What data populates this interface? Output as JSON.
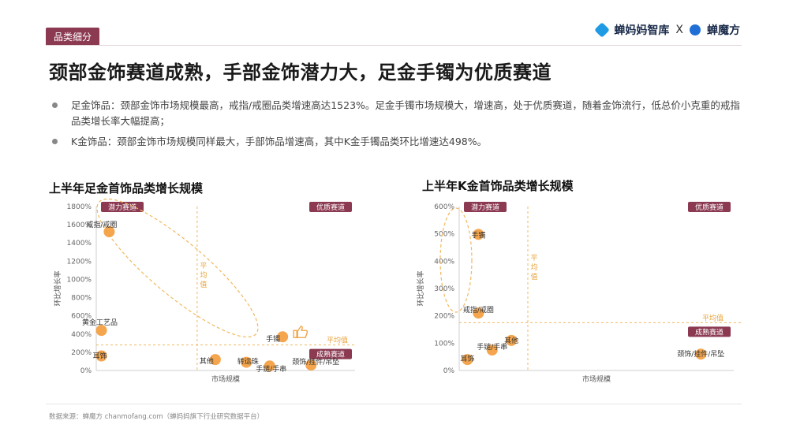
{
  "tag": "品类细分",
  "brand": {
    "name1": "蝉妈妈智库",
    "sep": "X",
    "name2": "蝉魔方",
    "color1": "#1f9be6",
    "color2": "#1f6fd6"
  },
  "headline": "颈部金饰赛道成熟，手部金饰潜力大，足金手镯为优质赛道",
  "bullets": [
    "足金饰品：颈部金饰市场规模最高，戒指/戒圈品类增速高达1523%。足金手镯市场规模大，增速高，处于优质赛道，随着金饰流行，低总价小克重的戒指品类增长率大幅提高；",
    "K金饰品：颈部金饰市场规模同样最大，手部饰品增速高，其中K金手镯品类环比增速达498%。"
  ],
  "source": "数据来源：蝉魔方 chanmofang.com（蝉妈妈旗下行业研究数据平台）",
  "colors": {
    "accent": "#8b3a52",
    "point": "#f39b3a",
    "guide": "#f0b960"
  },
  "chart_data": [
    {
      "type": "scatter",
      "title": "上半年足金首饰品类增长规模",
      "xlabel": "市场规模",
      "ylabel": "环比增长率",
      "ylim": [
        0,
        1800
      ],
      "yticks": [
        0,
        200,
        400,
        600,
        800,
        1000,
        1200,
        1400,
        1600,
        1800
      ],
      "yticklabels": [
        "0%",
        "200%",
        "400%",
        "600%",
        "800%",
        "1000%",
        "1200%",
        "1400%",
        "1600%",
        "1800%"
      ],
      "xlim": [
        0,
        100
      ],
      "avg_x": 39,
      "avg_y": 280,
      "avg_x_label": "平均值",
      "avg_y_label": "平均值",
      "quadrants": {
        "top_left": "潜力赛道",
        "top_right": "优质赛道",
        "bottom_right": "成熟赛道"
      },
      "points": [
        {
          "label": "戒指/戒圈",
          "x": 5,
          "y": 1523
        },
        {
          "label": "黄金工艺品",
          "x": 2,
          "y": 440
        },
        {
          "label": "耳饰",
          "x": 2,
          "y": 160
        },
        {
          "label": "手镯",
          "x": 72,
          "y": 370
        },
        {
          "label": "其他",
          "x": 46,
          "y": 120
        },
        {
          "label": "转运珠",
          "x": 58,
          "y": 90
        },
        {
          "label": "手链/手串",
          "x": 67,
          "y": 50
        },
        {
          "label": "颈饰/挂件/吊坠",
          "x": 83,
          "y": 60
        }
      ]
    },
    {
      "type": "scatter",
      "title": "上半年K金首饰品类增长规模",
      "xlabel": "市场规模",
      "ylabel": "环比增长率",
      "ylim": [
        0,
        600
      ],
      "yticks": [
        0,
        100,
        200,
        300,
        400,
        500,
        600
      ],
      "yticklabels": [
        "0%",
        "100%",
        "200%",
        "300%",
        "400%",
        "500%",
        "600%"
      ],
      "xlim": [
        0,
        100
      ],
      "avg_x": 25,
      "avg_y": 175,
      "avg_x_label": "平均值",
      "avg_y_label": "平均值",
      "quadrants": {
        "top_left": "潜力赛道",
        "top_right": "优质赛道",
        "bottom_right": "成熟赛道"
      },
      "points": [
        {
          "label": "手镯",
          "x": 7,
          "y": 498
        },
        {
          "label": "戒指/戒圈",
          "x": 7,
          "y": 210
        },
        {
          "label": "其他",
          "x": 19,
          "y": 110
        },
        {
          "label": "手链/手串",
          "x": 12,
          "y": 75
        },
        {
          "label": "耳饰",
          "x": 3,
          "y": 40
        },
        {
          "label": "颈饰/挂件/吊坠",
          "x": 88,
          "y": 60
        }
      ]
    }
  ]
}
